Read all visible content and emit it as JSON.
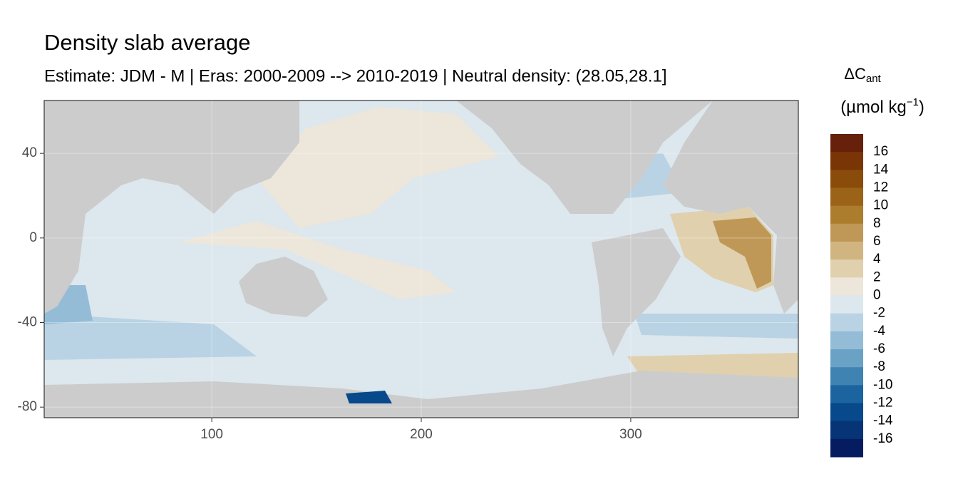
{
  "chart_data": {
    "type": "raster_map",
    "title": "Density slab average",
    "subtitle": "Estimate: JDM - M | Eras: 2000-2009 --> 2010-2019 | Neutral density: (28.05,28.1]",
    "xlim": [
      20,
      380
    ],
    "ylim": [
      -85,
      65
    ],
    "xticks": [
      100,
      200,
      300
    ],
    "yticks": [
      40,
      0,
      -40,
      -80
    ],
    "grid": true,
    "legend": {
      "title": "ΔC",
      "title_subscript": "ant",
      "unit": "(µmol kg",
      "unit_superscript": "−1",
      "unit_close": ")",
      "limits": [
        -18,
        18
      ],
      "breaks": [
        16,
        14,
        12,
        10,
        8,
        6,
        4,
        2,
        0,
        -2,
        -4,
        -6,
        -8,
        -10,
        -12,
        -14,
        -16
      ],
      "colors": [
        "#67200a",
        "#7a3507",
        "#8a4c0a",
        "#9b6318",
        "#ad7d2e",
        "#bf9857",
        "#d1b580",
        "#e0d0ad",
        "#ede6da",
        "#dde7ee",
        "#b9d3e4",
        "#94bcd7",
        "#6aa2c6",
        "#3f83b3",
        "#1c64a0",
        "#07498a",
        "#063477",
        "#061c60"
      ]
    }
  }
}
